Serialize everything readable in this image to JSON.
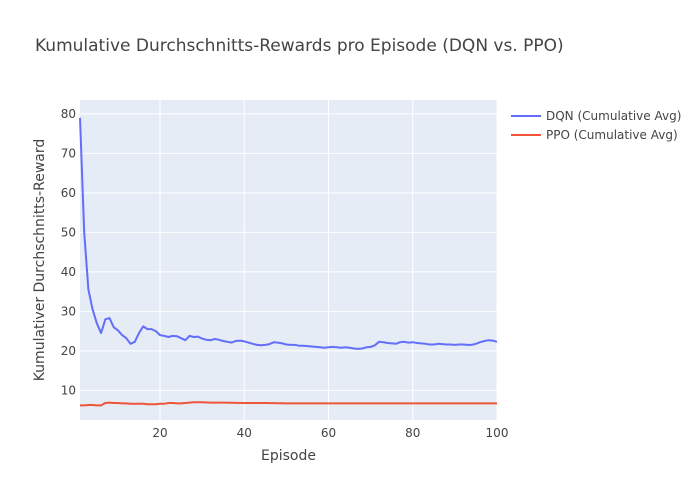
{
  "chart_data": {
    "type": "line",
    "title": "Kumulative Durchschnitts-Rewards pro Episode (DQN vs. PPO)",
    "xlabel": "Episode",
    "ylabel": "Kumulativer Durchschnitts-Reward",
    "xlim": [
      1,
      100
    ],
    "ylim": [
      2.5,
      83.5
    ],
    "x_ticks": [
      20,
      40,
      60,
      80,
      100
    ],
    "y_ticks": [
      10,
      20,
      30,
      40,
      50,
      60,
      70,
      80
    ],
    "grid": true,
    "legend_position": "top-right",
    "series": [
      {
        "name": "DQN (Cumulative Avg)",
        "color": "#636efa",
        "points": [
          [
            1,
            79
          ],
          [
            2,
            50
          ],
          [
            3,
            35.5
          ],
          [
            4,
            30.5
          ],
          [
            5,
            27
          ],
          [
            6,
            24.5
          ],
          [
            7,
            28
          ],
          [
            8,
            28.3
          ],
          [
            9,
            26
          ],
          [
            10,
            25.2
          ],
          [
            11,
            24
          ],
          [
            12,
            23.2
          ],
          [
            13,
            21.8
          ],
          [
            14,
            22.3
          ],
          [
            15,
            24.5
          ],
          [
            16,
            26.2
          ],
          [
            17,
            25.5
          ],
          [
            18,
            25.5
          ],
          [
            19,
            25
          ],
          [
            20,
            24
          ],
          [
            21,
            23.8
          ],
          [
            22,
            23.5
          ],
          [
            23,
            23.8
          ],
          [
            24,
            23.7
          ],
          [
            25,
            23.2
          ],
          [
            26,
            22.7
          ],
          [
            27,
            23.8
          ],
          [
            28,
            23.5
          ],
          [
            29,
            23.6
          ],
          [
            30,
            23.1
          ],
          [
            31,
            22.8
          ],
          [
            32,
            22.7
          ],
          [
            33,
            23
          ],
          [
            34,
            22.8
          ],
          [
            35,
            22.5
          ],
          [
            36,
            22.3
          ],
          [
            37,
            22.1
          ],
          [
            38,
            22.5
          ],
          [
            39,
            22.6
          ],
          [
            40,
            22.4
          ],
          [
            41,
            22.1
          ],
          [
            42,
            21.8
          ],
          [
            43,
            21.5
          ],
          [
            44,
            21.4
          ],
          [
            45,
            21.5
          ],
          [
            46,
            21.7
          ],
          [
            47,
            22.2
          ],
          [
            48,
            22.1
          ],
          [
            49,
            21.9
          ],
          [
            50,
            21.6
          ],
          [
            51,
            21.5
          ],
          [
            52,
            21.5
          ],
          [
            53,
            21.3
          ],
          [
            54,
            21.3
          ],
          [
            55,
            21.2
          ],
          [
            56,
            21.1
          ],
          [
            57,
            21
          ],
          [
            58,
            20.9
          ],
          [
            59,
            20.8
          ],
          [
            60,
            20.9
          ],
          [
            61,
            21
          ],
          [
            62,
            20.9
          ],
          [
            63,
            20.8
          ],
          [
            64,
            20.9
          ],
          [
            65,
            20.8
          ],
          [
            66,
            20.6
          ],
          [
            67,
            20.5
          ],
          [
            68,
            20.6
          ],
          [
            69,
            20.9
          ],
          [
            70,
            21
          ],
          [
            71,
            21.4
          ],
          [
            72,
            22.3
          ],
          [
            73,
            22.2
          ],
          [
            74,
            22
          ],
          [
            75,
            21.9
          ],
          [
            76,
            21.8
          ],
          [
            77,
            22.2
          ],
          [
            78,
            22.3
          ],
          [
            79,
            22.1
          ],
          [
            80,
            22.2
          ],
          [
            81,
            22
          ],
          [
            82,
            21.9
          ],
          [
            83,
            21.8
          ],
          [
            84,
            21.6
          ],
          [
            85,
            21.6
          ],
          [
            86,
            21.8
          ],
          [
            87,
            21.7
          ],
          [
            88,
            21.6
          ],
          [
            89,
            21.6
          ],
          [
            90,
            21.5
          ],
          [
            91,
            21.6
          ],
          [
            92,
            21.6
          ],
          [
            93,
            21.5
          ],
          [
            94,
            21.5
          ],
          [
            95,
            21.8
          ],
          [
            96,
            22.2
          ],
          [
            97,
            22.5
          ],
          [
            98,
            22.7
          ],
          [
            99,
            22.6
          ],
          [
            100,
            22.3
          ]
        ]
      },
      {
        "name": "PPO (Cumulative Avg)",
        "color": "#ef553b",
        "points": [
          [
            1,
            6.2
          ],
          [
            2,
            6.2
          ],
          [
            3,
            6.3
          ],
          [
            4,
            6.3
          ],
          [
            5,
            6.2
          ],
          [
            6,
            6.2
          ],
          [
            7,
            6.8
          ],
          [
            8,
            6.9
          ],
          [
            9,
            6.8
          ],
          [
            10,
            6.8
          ],
          [
            11,
            6.7
          ],
          [
            12,
            6.7
          ],
          [
            13,
            6.6
          ],
          [
            14,
            6.6
          ],
          [
            15,
            6.6
          ],
          [
            16,
            6.6
          ],
          [
            17,
            6.5
          ],
          [
            18,
            6.5
          ],
          [
            19,
            6.5
          ],
          [
            20,
            6.6
          ],
          [
            21,
            6.6
          ],
          [
            22,
            6.8
          ],
          [
            23,
            6.8
          ],
          [
            24,
            6.7
          ],
          [
            25,
            6.7
          ],
          [
            26,
            6.8
          ],
          [
            27,
            6.9
          ],
          [
            28,
            7
          ],
          [
            29,
            7
          ],
          [
            30,
            7
          ],
          [
            32,
            6.9
          ],
          [
            35,
            6.9
          ],
          [
            40,
            6.8
          ],
          [
            45,
            6.8
          ],
          [
            50,
            6.7
          ],
          [
            55,
            6.7
          ],
          [
            60,
            6.7
          ],
          [
            65,
            6.7
          ],
          [
            70,
            6.7
          ],
          [
            75,
            6.7
          ],
          [
            80,
            6.7
          ],
          [
            85,
            6.7
          ],
          [
            90,
            6.7
          ],
          [
            95,
            6.7
          ],
          [
            100,
            6.7
          ]
        ]
      }
    ]
  }
}
